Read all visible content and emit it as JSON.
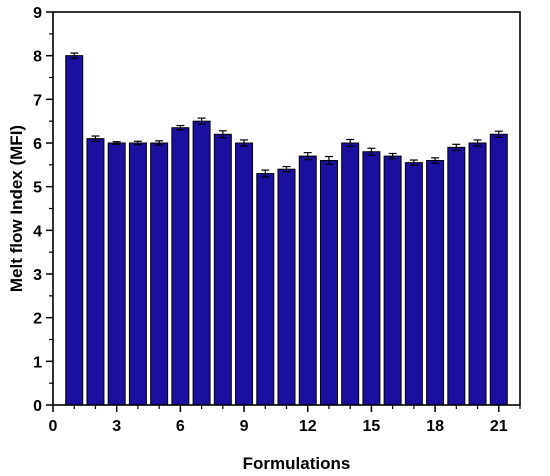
{
  "chart_data": {
    "type": "bar",
    "title": "",
    "xlabel": "Formulations",
    "ylabel": "Melt flow Index (MFI)",
    "x": [
      1,
      2,
      3,
      4,
      5,
      6,
      7,
      8,
      9,
      10,
      11,
      12,
      13,
      14,
      15,
      16,
      17,
      18,
      19,
      20,
      21
    ],
    "values": [
      8.0,
      6.1,
      6.0,
      6.0,
      6.0,
      6.35,
      6.5,
      6.2,
      6.0,
      5.3,
      5.4,
      5.7,
      5.6,
      6.0,
      5.8,
      5.7,
      5.55,
      5.6,
      5.9,
      6.0,
      6.2
    ],
    "errors": [
      0.06,
      0.06,
      0.03,
      0.04,
      0.05,
      0.05,
      0.07,
      0.08,
      0.07,
      0.08,
      0.06,
      0.08,
      0.09,
      0.08,
      0.08,
      0.06,
      0.06,
      0.06,
      0.07,
      0.07,
      0.07
    ],
    "xlim": [
      0,
      22
    ],
    "ylim": [
      0,
      9
    ],
    "xticks": [
      "0",
      "3",
      "6",
      "9",
      "12",
      "15",
      "18",
      "21"
    ],
    "yticks": [
      "0",
      "1",
      "2",
      "3",
      "4",
      "5",
      "6",
      "7",
      "8",
      "9"
    ],
    "bar_color": "#1a0f9e",
    "grid": false,
    "legend": "none"
  }
}
